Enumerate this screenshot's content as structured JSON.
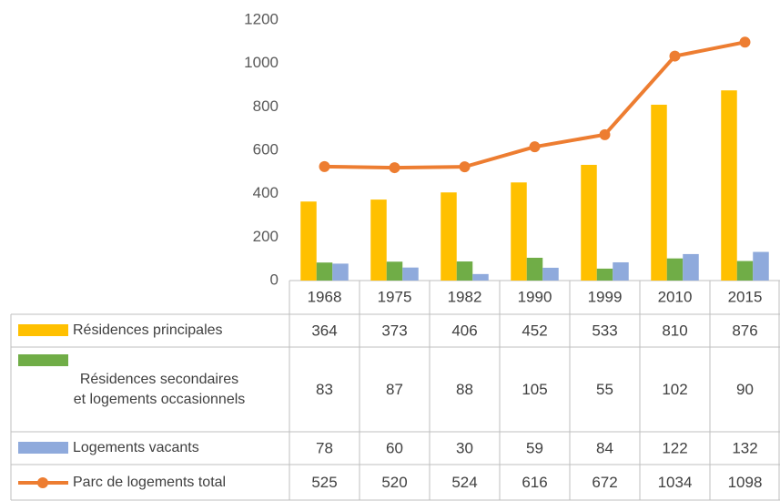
{
  "chart_data": {
    "type": "bar",
    "categories": [
      "1968",
      "1975",
      "1982",
      "1990",
      "1999",
      "2010",
      "2015"
    ],
    "series": [
      {
        "name": "Résidences principales",
        "color": "#ffc000",
        "values": [
          364,
          373,
          406,
          452,
          533,
          810,
          876
        ]
      },
      {
        "name": "Résidences secondaires et logements occasionnels",
        "color": "#70ad47",
        "values": [
          83,
          87,
          88,
          105,
          55,
          102,
          90
        ]
      },
      {
        "name": "Logements vacants",
        "color": "#8faadc",
        "values": [
          78,
          60,
          30,
          59,
          84,
          122,
          132
        ]
      },
      {
        "name": "Parc de logements total",
        "color": "#ed7d31",
        "type": "line",
        "values": [
          525,
          520,
          524,
          616,
          672,
          1034,
          1098
        ]
      }
    ],
    "ylim": [
      0,
      1200
    ],
    "yticks": [
      0,
      200,
      400,
      600,
      800,
      1000,
      1200
    ],
    "grid": false
  }
}
